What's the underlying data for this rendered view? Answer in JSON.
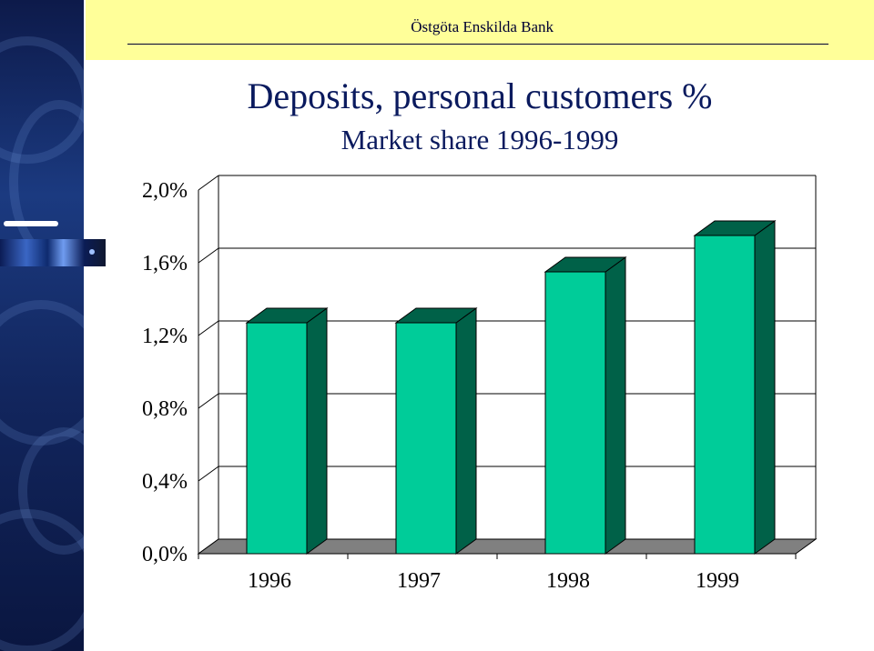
{
  "header": {
    "bank_name": "Östgöta Enskilda Bank"
  },
  "colors": {
    "bar_front": "#00cc99",
    "bar_side": "#006148",
    "floor": "#808080",
    "title": "#0a1a5e",
    "band": "#ffff99"
  },
  "chart_data": {
    "type": "bar",
    "title": "Deposits, personal customers %",
    "subtitle": "Market share 1996-1999",
    "xlabel": "",
    "ylabel": "",
    "categories": [
      "1996",
      "1997",
      "1998",
      "1999"
    ],
    "values": [
      1.27,
      1.27,
      1.55,
      1.75
    ],
    "ylim": [
      0,
      2.0
    ],
    "yticks": [
      0.0,
      0.4,
      0.8,
      1.2,
      1.6,
      2.0
    ],
    "ytick_labels": [
      "0,0%",
      "0,4%",
      "0,8%",
      "1,2%",
      "1,6%",
      "2,0%"
    ],
    "grid": true,
    "legend": "none",
    "style": "3d"
  }
}
